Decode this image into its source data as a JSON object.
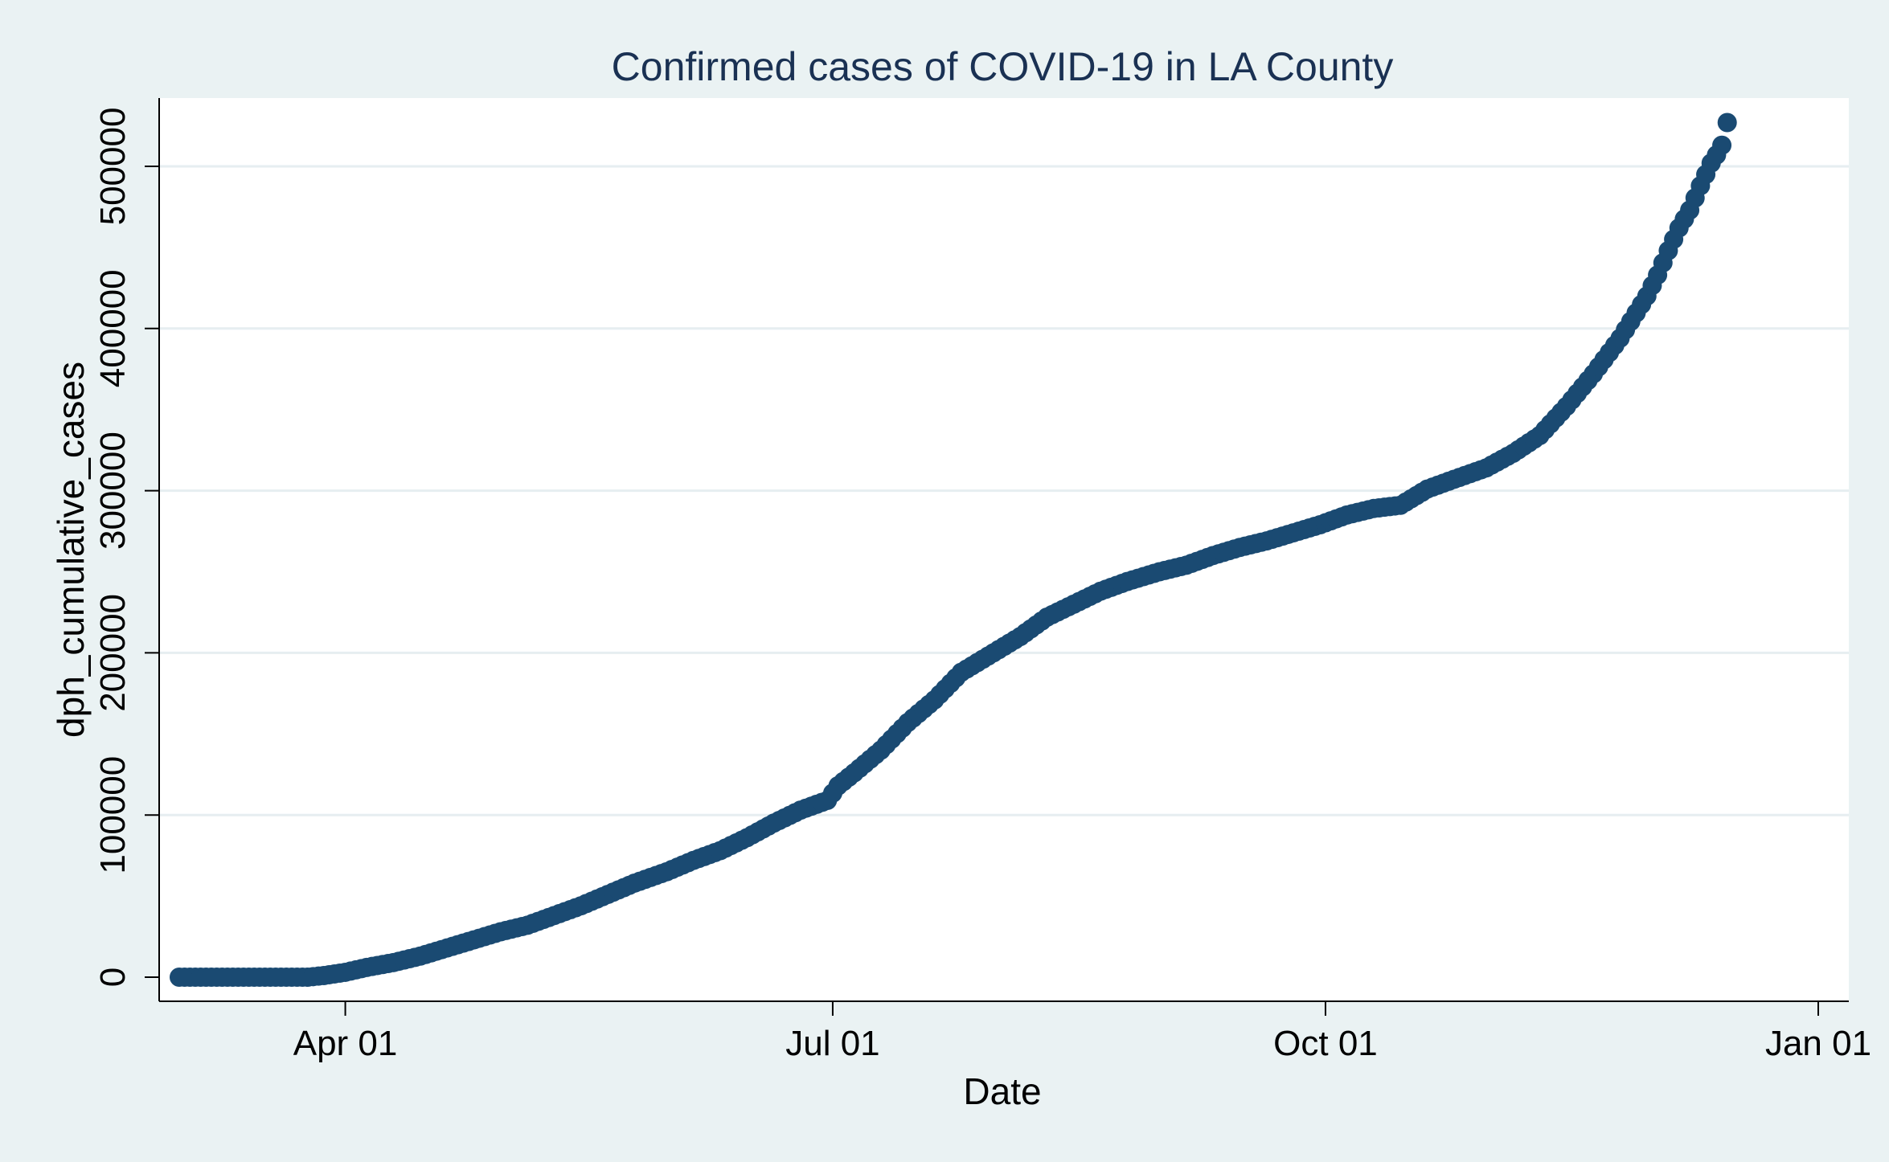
{
  "chart_data": {
    "type": "scatter",
    "title": "Confirmed cases of COVID-19 in LA County",
    "xlabel": "Date",
    "ylabel": "dph_cumulative_cases",
    "x_ticks": [
      {
        "date": "2020-04-01",
        "label": "Apr 01"
      },
      {
        "date": "2020-07-01",
        "label": "Jul 01"
      },
      {
        "date": "2020-10-01",
        "label": "Oct 01"
      },
      {
        "date": "2021-01-01",
        "label": "Jan 01"
      }
    ],
    "y_ticks": [
      0,
      100000,
      200000,
      300000,
      400000,
      500000
    ],
    "xlim": [
      "2020-03-01",
      "2021-01-01"
    ],
    "ylim": [
      0,
      525000
    ],
    "grid": "horizontal",
    "legend": "none",
    "marker_color": "#1a4a72",
    "series": [
      {
        "x": [
          "2020-03-01",
          "2020-03-05",
          "2020-03-10",
          "2020-03-15",
          "2020-03-20",
          "2020-03-25",
          "2020-03-28",
          "2020-04-01",
          "2020-04-05",
          "2020-04-10",
          "2020-04-15",
          "2020-04-20",
          "2020-04-25",
          "2020-04-30",
          "2020-05-05",
          "2020-05-10",
          "2020-05-15",
          "2020-05-20",
          "2020-05-25",
          "2020-05-31",
          "2020-06-05",
          "2020-06-10",
          "2020-06-15",
          "2020-06-20",
          "2020-06-25",
          "2020-06-30",
          "2020-07-02",
          "2020-07-05",
          "2020-07-10",
          "2020-07-15",
          "2020-07-20",
          "2020-07-25",
          "2020-07-30",
          "2020-08-05",
          "2020-08-10",
          "2020-08-15",
          "2020-08-20",
          "2020-08-25",
          "2020-08-31",
          "2020-09-05",
          "2020-09-10",
          "2020-09-15",
          "2020-09-20",
          "2020-09-25",
          "2020-09-30",
          "2020-10-05",
          "2020-10-10",
          "2020-10-15",
          "2020-10-20",
          "2020-10-25",
          "2020-10-31",
          "2020-11-05",
          "2020-11-10",
          "2020-11-15",
          "2020-11-20",
          "2020-11-25",
          "2020-11-30",
          "2020-12-02",
          "2020-12-04",
          "2020-12-06",
          "2020-12-08",
          "2020-12-10",
          "2020-12-12",
          "2020-12-13",
          "2020-12-14",
          "2020-12-15"
        ],
        "y": [
          0,
          0,
          0,
          0,
          0,
          0,
          1000,
          3000,
          6000,
          9000,
          13000,
          18000,
          23000,
          28000,
          32000,
          38000,
          44000,
          51000,
          58000,
          65000,
          72000,
          78000,
          86000,
          95000,
          103000,
          109000,
          118000,
          126000,
          140000,
          157000,
          171000,
          188000,
          198000,
          210000,
          222000,
          230000,
          238000,
          244000,
          250000,
          254000,
          260000,
          265000,
          269000,
          274000,
          279000,
          285000,
          289000,
          291000,
          301000,
          307000,
          314000,
          323000,
          334000,
          352000,
          372000,
          394000,
          420000,
          433000,
          448000,
          462000,
          473000,
          488000,
          502000,
          507000,
          513000,
          527000
        ]
      }
    ]
  }
}
